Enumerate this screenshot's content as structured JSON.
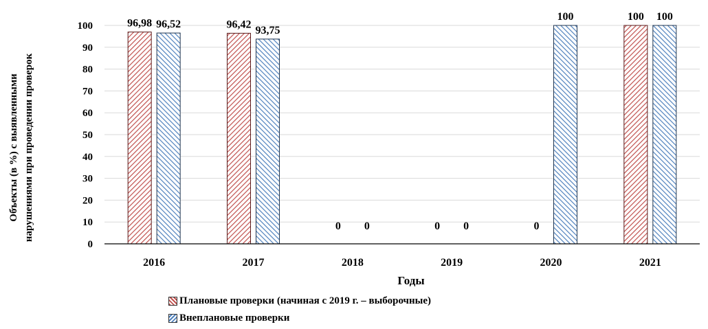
{
  "chart_data": {
    "type": "bar",
    "categories": [
      "2016",
      "2017",
      "2018",
      "2019",
      "2020",
      "2021"
    ],
    "series": [
      {
        "name": "Плановые проверки (начиная с 2019 г. – выборочные)",
        "values": [
          96.98,
          96.42,
          0,
          0,
          0,
          100
        ],
        "labels": [
          "96,98",
          "96,42",
          "0",
          "0",
          "0",
          "100"
        ],
        "color": "#c0504d",
        "hatch": "red-diagonal"
      },
      {
        "name": "Внеплановые проверки",
        "values": [
          96.52,
          93.75,
          0,
          0,
          100,
          100
        ],
        "labels": [
          "96,52",
          "93,75",
          "0",
          "0",
          "100",
          "100"
        ],
        "color": "#4f81bd",
        "hatch": "blue-diagonal"
      }
    ],
    "xlabel": "Годы",
    "ylabel_lines": [
      "Объекты (в %) с выявленными",
      "нарушениями при проведении проверок"
    ],
    "ylim": [
      0,
      100
    ],
    "yticks": [
      0,
      10,
      20,
      30,
      40,
      50,
      60,
      70,
      80,
      90,
      100
    ],
    "grid": true,
    "legend_position": "bottom"
  }
}
